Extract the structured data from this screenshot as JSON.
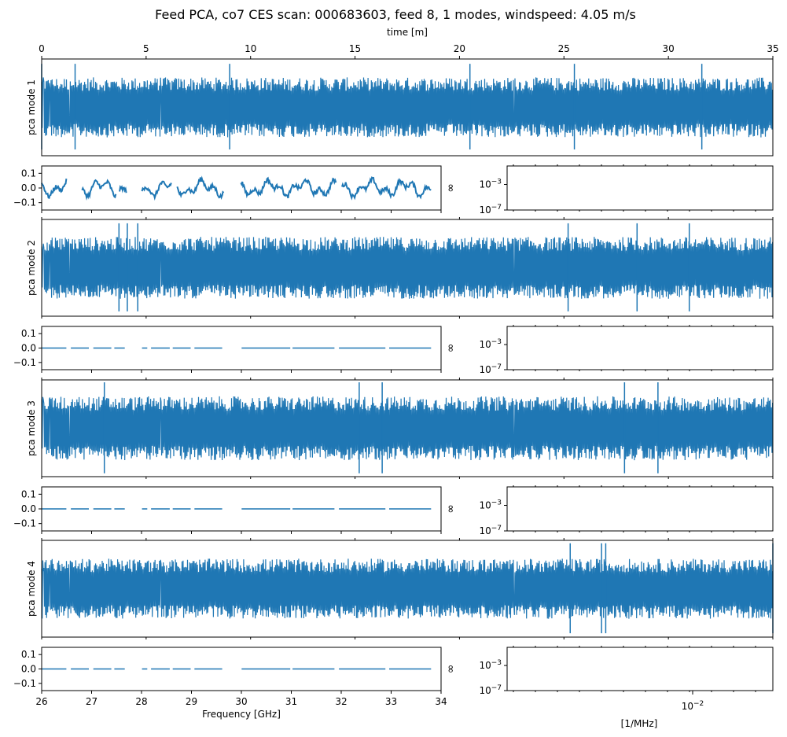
{
  "title": "Feed PCA, co7 CES scan: 000683603, feed 8, 1 modes, windspeed: 4.05 m/s",
  "colors": {
    "series": "#1f77b4",
    "axes": "#000000"
  },
  "chart_data": [
    {
      "type": "line",
      "role": "time-series",
      "ylabel": "pca mode 1",
      "xlabel": "time [m]",
      "xlabel_position": "top",
      "xlim": [
        0,
        35
      ],
      "xticks": [
        "0",
        "5",
        "10",
        "15",
        "20",
        "25",
        "30",
        "35"
      ],
      "ylim": [
        -1,
        1
      ],
      "yticks": [],
      "series": [
        {
          "amplitude": 0.62,
          "spike_max": 0.9,
          "spike_min": -0.87,
          "spike_times": [
            0,
            1.6,
            9.0,
            20.5,
            25.5,
            31.6
          ]
        }
      ]
    },
    {
      "type": "line",
      "role": "spectrum",
      "xlabel": "",
      "xlim": [
        26,
        34
      ],
      "ylim": [
        -0.15,
        0.15
      ],
      "yticks": [
        "0.1",
        "0.0",
        "−0.1"
      ],
      "series": [
        {
          "amplitude": 0.075,
          "x_range": [
            26,
            33.8
          ],
          "gaps": [
            [
              26.5,
              26.8
            ],
            [
              27.5,
              27.55
            ],
            [
              27.7,
              28
            ],
            [
              28.6,
              28.7
            ],
            [
              29.65,
              29.98
            ],
            [
              31.9,
              32.0
            ]
          ]
        }
      ]
    },
    {
      "type": "line",
      "role": "psd",
      "ylabel": "∞",
      "xlabel": "",
      "yscale": "log",
      "yticks": [
        "10⁻³",
        "10⁻⁷"
      ],
      "series": []
    },
    {
      "type": "line",
      "role": "time-series",
      "ylabel": "pca mode 2",
      "xlim": [
        0,
        35
      ],
      "ylim": [
        -1,
        1
      ],
      "series": [
        {
          "amplitude": 0.64,
          "spike_max": 0.92,
          "spike_min": -0.9,
          "spike_times": [
            3.7,
            4.1,
            4.6,
            25.2,
            28.5,
            31.0
          ]
        }
      ]
    },
    {
      "type": "line",
      "role": "spectrum",
      "xlim": [
        26,
        34
      ],
      "ylim": [
        -0.15,
        0.15
      ],
      "yticks": [
        "0.1",
        "0.0",
        "−0.1"
      ],
      "series": [
        {
          "level": 0.0,
          "x_range": [
            26,
            33.8
          ],
          "gaps": [
            [
              26.5,
              26.58
            ],
            [
              26.95,
              27.02
            ],
            [
              27.4,
              27.45
            ],
            [
              27.68,
              28.0
            ],
            [
              28.12,
              28.18
            ],
            [
              28.57,
              28.62
            ],
            [
              29.0,
              29.05
            ],
            [
              29.62,
              30.0
            ],
            [
              30.98,
              31.02
            ],
            [
              31.88,
              31.94
            ],
            [
              32.9,
              32.95
            ]
          ]
        }
      ]
    },
    {
      "type": "line",
      "role": "psd",
      "ylabel": "∞",
      "yscale": "log",
      "yticks": [
        "10⁻³",
        "10⁻⁷"
      ],
      "series": []
    },
    {
      "type": "line",
      "role": "time-series",
      "ylabel": "pca mode 3",
      "xlim": [
        0,
        35
      ],
      "ylim": [
        -1,
        1
      ],
      "series": [
        {
          "amplitude": 0.66,
          "spike_max": 0.95,
          "spike_min": -0.93,
          "spike_times": [
            3.0,
            15.2,
            16.3,
            27.9,
            29.5
          ]
        }
      ]
    },
    {
      "type": "line",
      "role": "spectrum",
      "xlim": [
        26,
        34
      ],
      "ylim": [
        -0.15,
        0.15
      ],
      "yticks": [
        "0.1",
        "0.0",
        "−0.1"
      ],
      "series": [
        {
          "level": 0.0,
          "x_range": [
            26,
            33.8
          ],
          "gaps": [
            [
              26.5,
              26.58
            ],
            [
              26.95,
              27.02
            ],
            [
              27.4,
              27.45
            ],
            [
              27.68,
              28.0
            ],
            [
              28.12,
              28.18
            ],
            [
              28.57,
              28.62
            ],
            [
              29.0,
              29.05
            ],
            [
              29.62,
              30.0
            ],
            [
              30.98,
              31.02
            ],
            [
              31.88,
              31.94
            ],
            [
              32.9,
              32.95
            ]
          ]
        }
      ]
    },
    {
      "type": "line",
      "role": "psd",
      "ylabel": "∞",
      "yscale": "log",
      "yticks": [
        "10⁻³",
        "10⁻⁷"
      ],
      "series": []
    },
    {
      "type": "line",
      "role": "time-series",
      "ylabel": "pca mode 4",
      "xlim": [
        0,
        35
      ],
      "ylim": [
        -1,
        1
      ],
      "series": [
        {
          "amplitude": 0.62,
          "spike_max": 0.94,
          "spike_min": -0.92,
          "spike_times": [
            25.3,
            27.0,
            26.8,
            35.0
          ]
        }
      ]
    },
    {
      "type": "line",
      "role": "spectrum",
      "xlabel": "Frequency [GHz]",
      "xlim": [
        26,
        34
      ],
      "xticks": [
        "26",
        "27",
        "28",
        "29",
        "30",
        "31",
        "32",
        "33",
        "34"
      ],
      "ylim": [
        -0.15,
        0.15
      ],
      "yticks": [
        "0.1",
        "0.0",
        "−0.1"
      ],
      "series": [
        {
          "level": 0.0,
          "x_range": [
            26,
            33.8
          ],
          "gaps": [
            [
              26.5,
              26.58
            ],
            [
              26.95,
              27.02
            ],
            [
              27.4,
              27.45
            ],
            [
              27.68,
              28.0
            ],
            [
              28.12,
              28.18
            ],
            [
              28.57,
              28.62
            ],
            [
              29.0,
              29.05
            ],
            [
              29.62,
              30.0
            ],
            [
              30.98,
              31.02
            ],
            [
              31.88,
              31.94
            ],
            [
              32.9,
              32.95
            ]
          ]
        }
      ]
    },
    {
      "type": "line",
      "role": "psd",
      "ylabel": "∞",
      "xlabel": "[1/MHz]",
      "xscale": "log",
      "xticks": [
        "10⁻²"
      ],
      "yscale": "log",
      "yticks": [
        "10⁻³",
        "10⁻⁷"
      ],
      "series": []
    }
  ]
}
